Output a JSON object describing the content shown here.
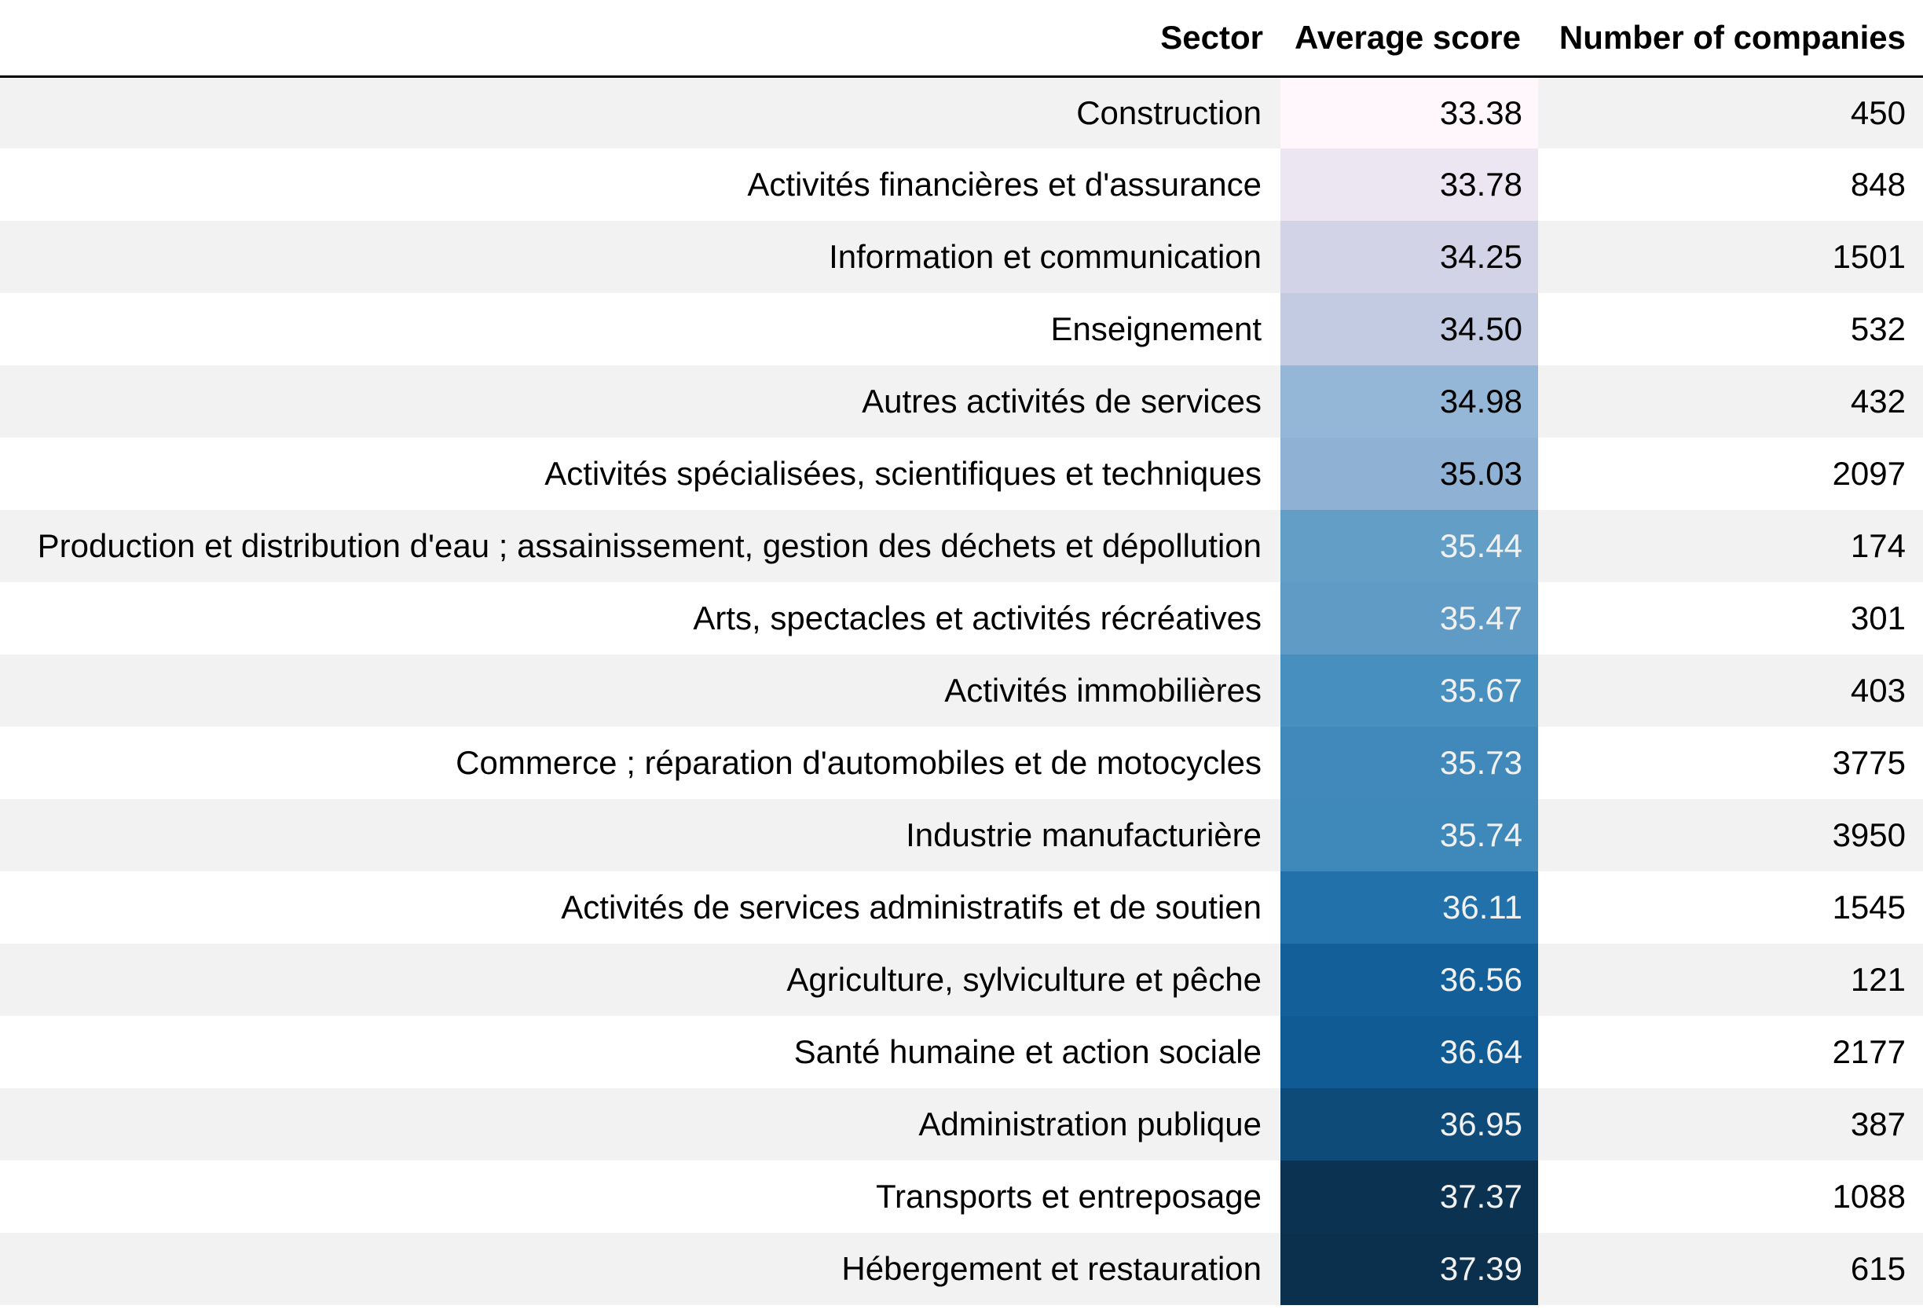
{
  "table": {
    "headers": {
      "sector": "Sector",
      "average_score": "Average score",
      "number_of_companies": "Number of companies"
    },
    "rows": [
      {
        "sector": "Construction",
        "average_score": "33.38",
        "number_of_companies": "450",
        "cell_bg": "#fff7fb",
        "cell_fg": "#000000"
      },
      {
        "sector": "Activités financières et d'assurance",
        "average_score": "33.78",
        "number_of_companies": "848",
        "cell_bg": "#ebe6f2",
        "cell_fg": "#000000"
      },
      {
        "sector": "Information et communication",
        "average_score": "34.25",
        "number_of_companies": "1501",
        "cell_bg": "#d2d3e7",
        "cell_fg": "#000000"
      },
      {
        "sector": "Enseignement",
        "average_score": "34.50",
        "number_of_companies": "532",
        "cell_bg": "#c2cbe2",
        "cell_fg": "#000000"
      },
      {
        "sector": "Autres activités de services",
        "average_score": "34.98",
        "number_of_companies": "432",
        "cell_bg": "#94b6d7",
        "cell_fg": "#000000"
      },
      {
        "sector": "Activités spécialisées, scientifiques et techniques",
        "average_score": "35.03",
        "number_of_companies": "2097",
        "cell_bg": "#8fb2d4",
        "cell_fg": "#000000"
      },
      {
        "sector": "Production et distribution d'eau ; assainissement, gestion des déchets et dépollution",
        "average_score": "35.44",
        "number_of_companies": "174",
        "cell_bg": "#629ec5",
        "cell_fg": "#f1f1f1"
      },
      {
        "sector": "Arts, spectacles et activités récréatives",
        "average_score": "35.47",
        "number_of_companies": "301",
        "cell_bg": "#5f9bc4",
        "cell_fg": "#f1f1f1"
      },
      {
        "sector": "Activités immobilières",
        "average_score": "35.67",
        "number_of_companies": "403",
        "cell_bg": "#468fbe",
        "cell_fg": "#f1f1f1"
      },
      {
        "sector": "Commerce ; réparation d'automobiles et de motocycles",
        "average_score": "35.73",
        "number_of_companies": "3775",
        "cell_bg": "#4189bb",
        "cell_fg": "#f1f1f1"
      },
      {
        "sector": "Industrie manufacturière",
        "average_score": "35.74",
        "number_of_companies": "3950",
        "cell_bg": "#3f88ba",
        "cell_fg": "#f1f1f1"
      },
      {
        "sector": "Activités de services administratifs et de soutien",
        "average_score": "36.11",
        "number_of_companies": "1545",
        "cell_bg": "#2271ab",
        "cell_fg": "#f1f1f1"
      },
      {
        "sector": "Agriculture, sylviculture et pêche",
        "average_score": "36.56",
        "number_of_companies": "121",
        "cell_bg": "#125f99",
        "cell_fg": "#f1f1f1"
      },
      {
        "sector": "Santé humaine et action sociale",
        "average_score": "36.64",
        "number_of_companies": "2177",
        "cell_bg": "#115b95",
        "cell_fg": "#f1f1f1"
      },
      {
        "sector": "Administration publique",
        "average_score": "36.95",
        "number_of_companies": "387",
        "cell_bg": "#0e4b78",
        "cell_fg": "#f1f1f1"
      },
      {
        "sector": "Transports et entreposage",
        "average_score": "37.37",
        "number_of_companies": "1088",
        "cell_bg": "#0b3250",
        "cell_fg": "#f1f1f1"
      },
      {
        "sector": "Hébergement et restauration",
        "average_score": "37.39",
        "number_of_companies": "615",
        "cell_bg": "#0b304d",
        "cell_fg": "#f1f1f1"
      }
    ]
  }
}
